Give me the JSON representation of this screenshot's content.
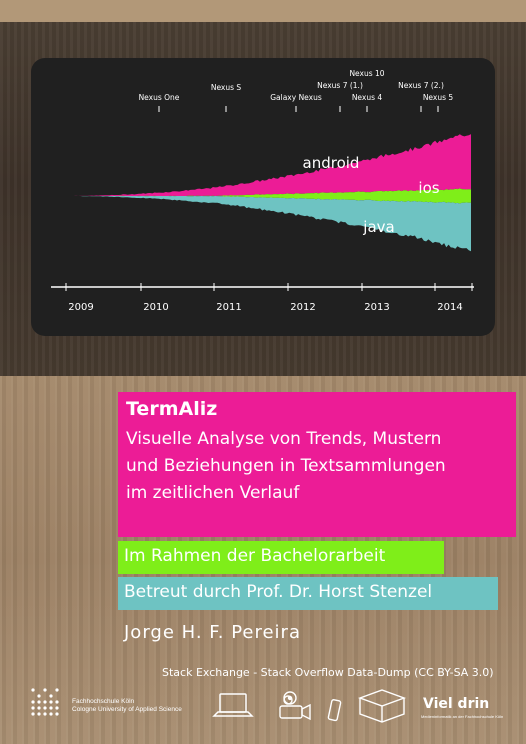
{
  "chart_data": {
    "type": "area",
    "streamgraph": true,
    "x_axis": {
      "tick_labels": [
        "2009",
        "2010",
        "2011",
        "2012",
        "2013",
        "2014"
      ]
    },
    "annotations": [
      {
        "label": "Nexus One",
        "year": 2010.0
      },
      {
        "label": "Nexus S",
        "year": 2010.95
      },
      {
        "label": "Galaxy Nexus",
        "year": 2011.9
      },
      {
        "label": "Nexus 7 (1.)",
        "year": 2012.55
      },
      {
        "label": "Nexus 10",
        "year": 2012.85
      },
      {
        "label": "Nexus 4",
        "year": 2012.87
      },
      {
        "label": "Nexus 7 (2.)",
        "year": 2013.57
      },
      {
        "label": "Nexus 5",
        "year": 2013.85
      }
    ],
    "series": [
      {
        "name": "android",
        "color": "#ec1c96"
      },
      {
        "name": "ios",
        "color": "#7fee19"
      },
      {
        "name": "java",
        "color": "#6ec3c2"
      }
    ]
  },
  "poster": {
    "title": "TermAliz",
    "subtitle_lines": [
      "Visuelle Analyse von Trends, Mustern",
      "und Beziehungen in Textsammlungen",
      "im zeitlichen Verlauf"
    ],
    "context": "Im Rahmen der Bachelorarbeit",
    "supervisor": "Betreut durch Prof. Dr. Horst Stenzel",
    "author": "Jorge H. F. Pereira",
    "data_source": "Stack Exchange - Stack Overflow Data-Dump (CC BY-SA 3.0)"
  },
  "footer": {
    "university_line1": "Fachhochschule Köln",
    "university_line2": "Cologne University of Applied Science",
    "brand": "Viel drin",
    "brand_sub": "Medieninformatik an der Fachhochschule Köln",
    "icons": [
      "laptop-icon",
      "film-reel-icon",
      "video-camera-icon",
      "phone-icon",
      "box-icon"
    ]
  },
  "colors": {
    "android": "#ec1c96",
    "ios": "#7fee19",
    "java": "#6ec3c2",
    "chart_bg": "#202020"
  }
}
